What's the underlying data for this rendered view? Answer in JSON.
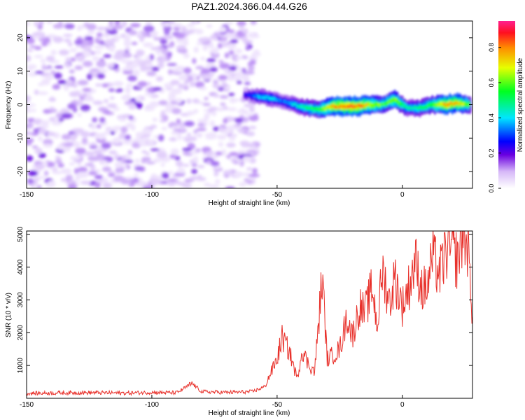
{
  "title": "PAZ1.2024.366.04.44.G26",
  "chart_data": [
    {
      "type": "heatmap",
      "xlabel": "Height of straight line (km)",
      "ylabel": "Frequency (Hz)",
      "colorbar_label": "Normalized spectral amplitude",
      "xlim": [
        -150,
        28
      ],
      "ylim": [
        -25,
        25
      ],
      "xticks": [
        -150,
        -100,
        -50,
        0
      ],
      "yticks": [
        -20,
        -10,
        0,
        10,
        20
      ],
      "colorbar_range": [
        0.0,
        0.95
      ],
      "colorbar_ticks": [
        "0.0",
        "0.2",
        "0.4",
        "0.6",
        "0.8"
      ],
      "noise_region_x": [
        -150,
        -58
      ],
      "ridge": {
        "x": [
          -63,
          -58,
          -53,
          -48,
          -43,
          -38,
          -33,
          -28,
          -23,
          -18,
          -13,
          -8,
          -3,
          2,
          7,
          12,
          17,
          22,
          27
        ],
        "freq_hz": [
          3,
          2.5,
          2,
          1,
          0,
          -1,
          -1.5,
          -0.5,
          -0.5,
          -0.5,
          0,
          0,
          1.5,
          -1,
          -1,
          0,
          0,
          0.5,
          0
        ],
        "amplitude": [
          0.25,
          0.4,
          0.45,
          0.35,
          0.45,
          0.55,
          0.6,
          0.8,
          0.9,
          0.9,
          0.75,
          0.6,
          0.7,
          0.5,
          0.55,
          0.6,
          0.85,
          0.8,
          0.6
        ]
      }
    },
    {
      "type": "line",
      "xlabel": "Height of straight line (km)",
      "ylabel": "SNR (10 * v/v)",
      "xlim": [
        -150,
        28
      ],
      "ylim": [
        0,
        5100
      ],
      "xticks": [
        -150,
        -100,
        -50,
        0
      ],
      "yticks": [
        1000,
        2000,
        3000,
        4000,
        5000
      ],
      "color": "#e8302a",
      "x": [
        -150,
        -140,
        -130,
        -120,
        -110,
        -100,
        -90,
        -84,
        -80,
        -70,
        -60,
        -55,
        -50,
        -48,
        -45,
        -42,
        -40,
        -38,
        -35,
        -32,
        -30,
        -28,
        -25,
        -22,
        -20,
        -17,
        -15,
        -12,
        -10,
        -8,
        -5,
        -3,
        0,
        3,
        5,
        8,
        10,
        12,
        15,
        18,
        20,
        22,
        24,
        26,
        28
      ],
      "y": [
        150,
        160,
        170,
        170,
        160,
        180,
        170,
        450,
        200,
        180,
        200,
        350,
        1200,
        1850,
        1400,
        600,
        1500,
        1100,
        800,
        3700,
        1200,
        1300,
        1500,
        2500,
        1900,
        2800,
        2600,
        3400,
        2200,
        3900,
        2900,
        3700,
        2800,
        3500,
        4200,
        3300,
        3400,
        4300,
        3800,
        4600,
        4500,
        4200,
        5050,
        4700,
        2600
      ]
    }
  ]
}
